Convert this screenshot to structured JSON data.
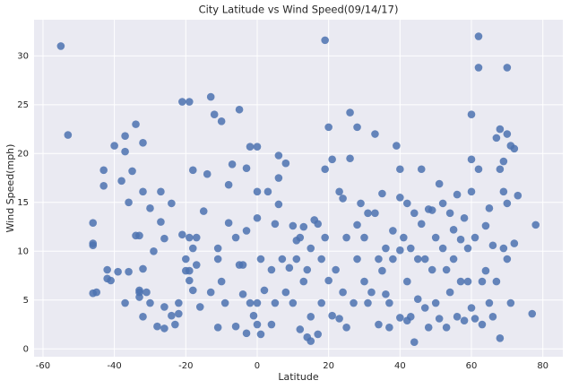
{
  "chart_data": {
    "type": "scatter",
    "title": "City Latitude vs Wind Speed(09/14/17)",
    "x_label": "Latitude",
    "y_label": "Wind Speed(mph)",
    "color": "#4c72b0",
    "grid": true,
    "xlim": [
      -62.5,
      85.6
    ],
    "ylim": [
      -0.8,
      33.7
    ],
    "xticks": [
      -60,
      -40,
      -20,
      0,
      20,
      40,
      60,
      80
    ],
    "yticks": [
      0,
      5,
      10,
      15,
      20,
      25,
      30
    ],
    "x": [
      -55,
      -53,
      -46,
      -46,
      -46,
      -46,
      -45,
      -43,
      -43,
      -42,
      -42,
      -41,
      -40,
      -39,
      -38,
      -37,
      -37,
      -37,
      -36,
      -36,
      -35,
      -34,
      -34,
      -33,
      -33,
      -33,
      -33,
      -32,
      -32,
      -32,
      -32,
      -31,
      -30,
      -30,
      -29,
      -28,
      -27,
      -27,
      -26,
      -26,
      -26,
      -24,
      -24,
      -23,
      -22,
      -22,
      -21,
      -21,
      -20,
      -20,
      -19,
      -19,
      -19,
      -19,
      -18,
      -18,
      -18,
      -17,
      -17,
      -16,
      -15,
      -14,
      -13,
      -13,
      -12,
      -11,
      -11,
      -11,
      -10,
      -10,
      -9,
      -8,
      -8,
      -7,
      -6,
      -6,
      -5,
      -5,
      -4,
      -4,
      -3,
      -3,
      -3,
      -2,
      -2,
      -1,
      0,
      0,
      0,
      0,
      0,
      1,
      1,
      2,
      3,
      4,
      4,
      5,
      5,
      6,
      6,
      6,
      7,
      8,
      8,
      9,
      10,
      10,
      11,
      11,
      12,
      12,
      13,
      13,
      14,
      14,
      15,
      15,
      15,
      16,
      17,
      17,
      18,
      18,
      19,
      19,
      19,
      20,
      20,
      21,
      21,
      22,
      23,
      23,
      24,
      24,
      25,
      25,
      26,
      26,
      27,
      28,
      28,
      28,
      29,
      30,
      30,
      31,
      31,
      32,
      33,
      33,
      34,
      34,
      35,
      35,
      36,
      36,
      37,
      37,
      38,
      38,
      39,
      40,
      40,
      40,
      40,
      41,
      42,
      42,
      42,
      43,
      43,
      44,
      44,
      45,
      45,
      46,
      46,
      47,
      47,
      48,
      48,
      49,
      49,
      50,
      50,
      51,
      51,
      52,
      52,
      53,
      53,
      54,
      54,
      55,
      55,
      56,
      56,
      57,
      57,
      58,
      58,
      59,
      59,
      60,
      60,
      60,
      60,
      61,
      61,
      62,
      62,
      62,
      63,
      63,
      64,
      64,
      65,
      65,
      66,
      66,
      67,
      67,
      68,
      68,
      68,
      69,
      69,
      69,
      70,
      70,
      70,
      70,
      71,
      71,
      72,
      72,
      73,
      77,
      78
    ],
    "values": [
      31,
      21.9,
      12.9,
      10.6,
      10.8,
      5.7,
      5.8,
      16.7,
      18.3,
      8.1,
      7.2,
      7,
      20.8,
      7.9,
      17.2,
      20.2,
      4.7,
      21.8,
      15,
      7.9,
      18.2,
      23,
      11.6,
      11.6,
      5.3,
      6,
      5.8,
      8.2,
      16.1,
      21.1,
      3.3,
      5.8,
      14.4,
      4.7,
      10,
      2.3,
      16.1,
      13,
      4.3,
      11.3,
      2.1,
      3.4,
      14.9,
      2.5,
      3.6,
      4.7,
      11.7,
      25.3,
      9.2,
      8,
      25.3,
      8,
      11.4,
      7,
      18.3,
      10.3,
      6,
      8.6,
      11.4,
      4.3,
      14.1,
      17.9,
      25.8,
      5.8,
      24,
      10.3,
      9.2,
      2.2,
      23.3,
      6.9,
      4.7,
      12.9,
      16.8,
      18.9,
      11.4,
      2.3,
      24.5,
      8.6,
      8.6,
      5.6,
      18.5,
      12.1,
      1.6,
      20.7,
      4.7,
      3.4,
      20.7,
      16.1,
      13.4,
      4.7,
      2.5,
      9.2,
      1.5,
      6,
      16.1,
      8.1,
      2.5,
      12.8,
      4.7,
      19.8,
      17.5,
      14.8,
      9.2,
      19,
      5.8,
      8.3,
      12.6,
      4.7,
      11.1,
      9.2,
      11.4,
      2,
      12.5,
      6.9,
      1.2,
      8.1,
      0.8,
      10.3,
      3.3,
      13.2,
      12.8,
      1.5,
      9.2,
      4.7,
      18.4,
      31.6,
      11.4,
      22.7,
      7,
      19.4,
      3.4,
      8.1,
      16.1,
      3.1,
      15.4,
      5.8,
      11.4,
      2.2,
      24.2,
      19.5,
      4.7,
      9.2,
      12.7,
      22.7,
      14.9,
      11.4,
      6.9,
      13.9,
      4.7,
      5.8,
      22,
      13.9,
      9.2,
      2.5,
      15.9,
      8,
      10.3,
      5.6,
      4.7,
      2.2,
      9.2,
      12.1,
      20.8,
      18.4,
      15.5,
      10.1,
      3.2,
      11.4,
      14.9,
      6.9,
      2.9,
      3.3,
      10.3,
      0.7,
      13.9,
      5.1,
      9.2,
      18.4,
      12.8,
      4.2,
      9.2,
      14.3,
      2.2,
      8.1,
      14.2,
      4.7,
      11.4,
      16.9,
      3.1,
      14.9,
      10.3,
      8.1,
      2.2,
      13.9,
      5.8,
      12.2,
      9.2,
      15.8,
      3.3,
      11.2,
      6.9,
      13.4,
      2.9,
      10.3,
      6.9,
      24,
      19.4,
      16.1,
      4.2,
      11.4,
      3.1,
      32,
      28.8,
      18.4,
      6.9,
      2.5,
      12.6,
      8,
      14.4,
      4.7,
      10.6,
      3.3,
      21.6,
      6.9,
      22.5,
      18.4,
      1.1,
      19.2,
      16.1,
      10.3,
      28.8,
      22,
      14.9,
      9.2,
      20.8,
      4.7,
      20.5,
      10.8,
      15.7,
      3.6,
      12.7
    ]
  }
}
